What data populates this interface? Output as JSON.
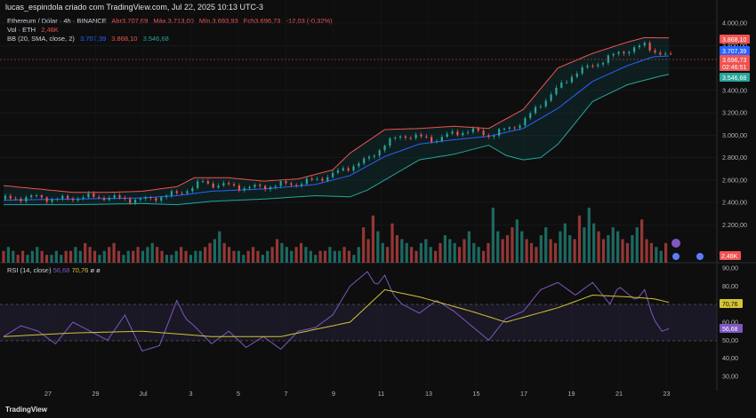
{
  "caption": "lucas_espindola criado com TradingView.com, Jul 22, 2025 10:13 UTC-3",
  "legend": {
    "symbol": "Ethereum / Dólar · 4h · BINANCE",
    "open": "Abr3.707,69",
    "high": "Máx.3.713,00",
    "low": "Mín.3.693,93",
    "close": "Fch3.696,73",
    "change": "-12,03 (-0,32%)",
    "vol_label": "Vol · ETH",
    "vol_value": "2,46K",
    "bb_label": "BB (20, SMA, close, 2)",
    "bb_mid": "3.707,39",
    "bb_upper": "3.868,10",
    "bb_lower": "3.546,68"
  },
  "rsi_legend": {
    "label": "RSI (14, close)",
    "rsi": "56,68",
    "ma": "70,76",
    "extra": "ø ø"
  },
  "price_tags": {
    "upper": "3.868,10",
    "mid": "3.707,39",
    "close": "3.696,73",
    "countdown": "02:46:51",
    "lower": "3.546,68",
    "volume": "2,46K"
  },
  "rsi_tags": {
    "ma": "70,76",
    "rsi": "56,68"
  },
  "logo": "TradingView",
  "colors": {
    "up": "#26a69a",
    "down": "#ef5350",
    "bb_upper": "#ef5350",
    "bb_mid": "#2962ff",
    "bb_lower": "#26a69a",
    "rsi": "#7e57c2",
    "rsi_ma": "#d4c334"
  },
  "chart_data": {
    "type": "candlestick",
    "price_axis": {
      "ticks": [
        "4.000,00",
        "3.800,00",
        "3.600,00",
        "3.400,00",
        "3.200,00",
        "3.000,00",
        "2.800,00",
        "2.600,00",
        "2.400,00",
        "2.200,00"
      ],
      "min": 2100,
      "max": 4000
    },
    "rsi_axis": {
      "ticks": [
        "90,00",
        "80,00",
        "70,00",
        "60,00",
        "50,00",
        "40,00",
        "30,00"
      ],
      "min": 30,
      "max": 90,
      "band": [
        30,
        70
      ]
    },
    "x_ticks": [
      "27",
      "29",
      "Jul",
      "3",
      "5",
      "7",
      "9",
      "11",
      "13",
      "15",
      "17",
      "19",
      "21",
      "23"
    ],
    "price_path": [
      [
        0,
        2430
      ],
      [
        10,
        2440
      ],
      [
        20,
        2450
      ],
      [
        30,
        2425
      ],
      [
        40,
        2440
      ],
      [
        50,
        2450
      ],
      [
        60,
        2445
      ],
      [
        70,
        2430
      ],
      [
        80,
        2420
      ],
      [
        90,
        2450
      ],
      [
        100,
        2480
      ],
      [
        110,
        2540
      ],
      [
        115,
        2585
      ],
      [
        120,
        2560
      ],
      [
        130,
        2550
      ],
      [
        140,
        2530
      ],
      [
        150,
        2540
      ],
      [
        160,
        2560
      ],
      [
        170,
        2570
      ],
      [
        180,
        2600
      ],
      [
        190,
        2650
      ],
      [
        200,
        2720
      ],
      [
        210,
        2780
      ],
      [
        220,
        2920
      ],
      [
        230,
        3000
      ],
      [
        240,
        2980
      ],
      [
        250,
        2960
      ],
      [
        260,
        3020
      ],
      [
        270,
        3040
      ],
      [
        280,
        3000
      ],
      [
        290,
        3050
      ],
      [
        300,
        3120
      ],
      [
        310,
        3280
      ],
      [
        320,
        3420
      ],
      [
        330,
        3560
      ],
      [
        340,
        3620
      ],
      [
        350,
        3700
      ],
      [
        360,
        3760
      ],
      [
        370,
        3800
      ],
      [
        380,
        3720
      ],
      [
        385,
        3700
      ]
    ],
    "bb_upper": [
      [
        0,
        2550
      ],
      [
        20,
        2520
      ],
      [
        40,
        2490
      ],
      [
        60,
        2490
      ],
      [
        80,
        2500
      ],
      [
        100,
        2540
      ],
      [
        110,
        2620
      ],
      [
        130,
        2620
      ],
      [
        150,
        2590
      ],
      [
        170,
        2610
      ],
      [
        190,
        2690
      ],
      [
        200,
        2840
      ],
      [
        220,
        3050
      ],
      [
        240,
        3060
      ],
      [
        260,
        3080
      ],
      [
        280,
        3060
      ],
      [
        300,
        3230
      ],
      [
        320,
        3600
      ],
      [
        340,
        3730
      ],
      [
        360,
        3830
      ],
      [
        370,
        3870
      ],
      [
        385,
        3868
      ]
    ],
    "bb_mid": [
      [
        0,
        2420
      ],
      [
        40,
        2430
      ],
      [
        80,
        2440
      ],
      [
        100,
        2460
      ],
      [
        120,
        2500
      ],
      [
        150,
        2520
      ],
      [
        180,
        2560
      ],
      [
        200,
        2640
      ],
      [
        220,
        2810
      ],
      [
        240,
        2920
      ],
      [
        260,
        2960
      ],
      [
        280,
        2990
      ],
      [
        300,
        3060
      ],
      [
        320,
        3240
      ],
      [
        340,
        3480
      ],
      [
        360,
        3620
      ],
      [
        375,
        3700
      ],
      [
        385,
        3707
      ]
    ],
    "bb_lower": [
      [
        0,
        2380
      ],
      [
        40,
        2380
      ],
      [
        80,
        2390
      ],
      [
        100,
        2380
      ],
      [
        120,
        2410
      ],
      [
        150,
        2430
      ],
      [
        180,
        2460
      ],
      [
        200,
        2450
      ],
      [
        210,
        2510
      ],
      [
        240,
        2780
      ],
      [
        260,
        2830
      ],
      [
        280,
        2910
      ],
      [
        290,
        2820
      ],
      [
        300,
        2780
      ],
      [
        310,
        2800
      ],
      [
        320,
        2920
      ],
      [
        340,
        3300
      ],
      [
        360,
        3450
      ],
      [
        380,
        3530
      ],
      [
        385,
        3546
      ]
    ],
    "volume": [
      3,
      4,
      3,
      2,
      3,
      2,
      3,
      4,
      3,
      2,
      2,
      3,
      2,
      3,
      3,
      4,
      3,
      5,
      4,
      3,
      2,
      3,
      4,
      5,
      3,
      2,
      3,
      3,
      4,
      3,
      4,
      5,
      4,
      3,
      2,
      2,
      3,
      4,
      3,
      2,
      3,
      3,
      4,
      5,
      6,
      8,
      5,
      4,
      3,
      3,
      2,
      3,
      4,
      3,
      2,
      3,
      4,
      6,
      5,
      4,
      3,
      4,
      5,
      4,
      3,
      2,
      3,
      3,
      4,
      3,
      3,
      4,
      3,
      2,
      4,
      9,
      6,
      12,
      8,
      5,
      4,
      10,
      7,
      6,
      5,
      4,
      3,
      5,
      6,
      4,
      3,
      5,
      7,
      6,
      5,
      4,
      6,
      8,
      5,
      4,
      3,
      5,
      14,
      8,
      6,
      7,
      9,
      11,
      8,
      6,
      5,
      4,
      7,
      9,
      6,
      5,
      8,
      10,
      7,
      6,
      12,
      9,
      14,
      10,
      8,
      6,
      7,
      9,
      8,
      6,
      5,
      7,
      9,
      11,
      6,
      5,
      4,
      3,
      5
    ],
    "rsi": [
      [
        0,
        52
      ],
      [
        10,
        58
      ],
      [
        20,
        55
      ],
      [
        30,
        48
      ],
      [
        40,
        60
      ],
      [
        50,
        55
      ],
      [
        60,
        50
      ],
      [
        70,
        64
      ],
      [
        80,
        44
      ],
      [
        90,
        47
      ],
      [
        100,
        72
      ],
      [
        105,
        62
      ],
      [
        110,
        58
      ],
      [
        120,
        48
      ],
      [
        130,
        55
      ],
      [
        140,
        46
      ],
      [
        150,
        52
      ],
      [
        160,
        45
      ],
      [
        170,
        55
      ],
      [
        180,
        57
      ],
      [
        190,
        64
      ],
      [
        200,
        80
      ],
      [
        210,
        88
      ],
      [
        215,
        80
      ],
      [
        220,
        86
      ],
      [
        225,
        75
      ],
      [
        230,
        70
      ],
      [
        240,
        65
      ],
      [
        250,
        72
      ],
      [
        260,
        66
      ],
      [
        270,
        58
      ],
      [
        280,
        50
      ],
      [
        290,
        62
      ],
      [
        300,
        66
      ],
      [
        310,
        78
      ],
      [
        320,
        82
      ],
      [
        330,
        75
      ],
      [
        340,
        82
      ],
      [
        350,
        70
      ],
      [
        355,
        80
      ],
      [
        365,
        72
      ],
      [
        370,
        78
      ],
      [
        375,
        62
      ],
      [
        380,
        55
      ],
      [
        385,
        56.68
      ]
    ],
    "rsi_ma": [
      [
        0,
        52
      ],
      [
        40,
        54
      ],
      [
        80,
        55
      ],
      [
        120,
        52
      ],
      [
        160,
        52
      ],
      [
        200,
        60
      ],
      [
        220,
        78
      ],
      [
        240,
        74
      ],
      [
        270,
        66
      ],
      [
        290,
        60
      ],
      [
        320,
        68
      ],
      [
        340,
        75
      ],
      [
        360,
        74
      ],
      [
        375,
        73
      ],
      [
        385,
        70.76
      ]
    ]
  }
}
